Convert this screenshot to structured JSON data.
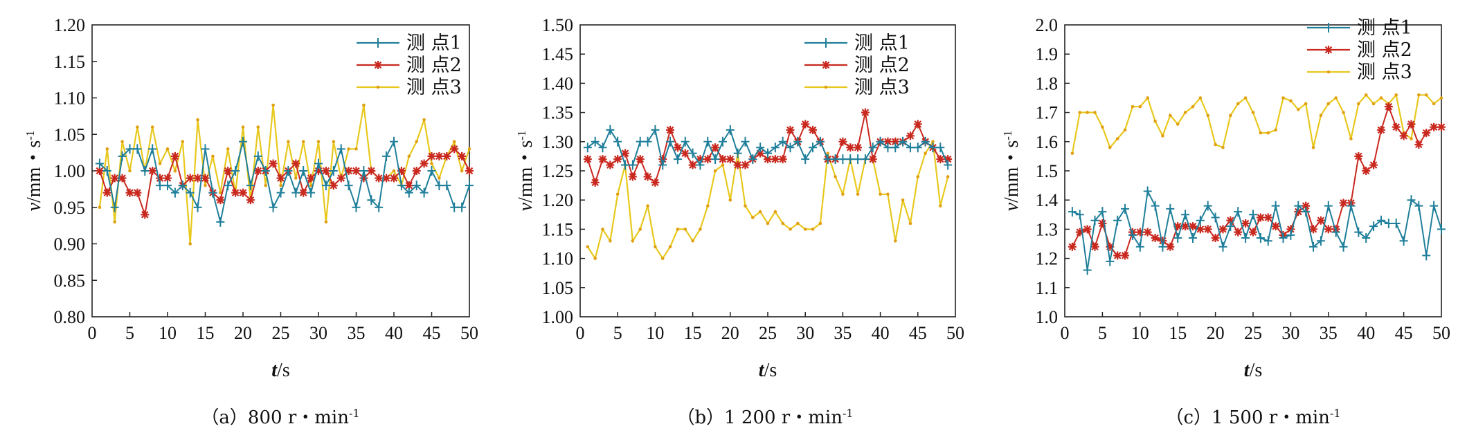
{
  "chart_data": [
    {
      "type": "line",
      "caption": "（a）800 r・min",
      "caption_sup": "-1",
      "xlabel_italic": "t",
      "xlabel_unit": "/s",
      "ylabel_italic": "v",
      "ylabel_unit": "/mm・s",
      "ylabel_sup": "-1",
      "xlim": [
        0,
        50
      ],
      "ylim": [
        0.8,
        1.2
      ],
      "xticks": [
        "0",
        "5",
        "10",
        "15",
        "20",
        "25",
        "30",
        "35",
        "40",
        "45",
        "50"
      ],
      "yticks": [
        "0.80",
        "0.85",
        "0.90",
        "0.95",
        "1.00",
        "1.05",
        "1.10",
        "1.15",
        "1.20"
      ],
      "legend_position": "top-right",
      "series": [
        {
          "name": "测 点1",
          "color": "#1f7f9a",
          "marker": "plus",
          "x": [
            1,
            2,
            3,
            4,
            5,
            6,
            7,
            8,
            9,
            10,
            11,
            12,
            13,
            14,
            15,
            16,
            17,
            18,
            19,
            20,
            21,
            22,
            23,
            24,
            25,
            26,
            27,
            28,
            29,
            30,
            31,
            32,
            33,
            34,
            35,
            36,
            37,
            38,
            39,
            40,
            41,
            42,
            43,
            44,
            45,
            46,
            47,
            48,
            49,
            50
          ],
          "y": [
            1.01,
            1.0,
            0.95,
            1.02,
            1.03,
            1.03,
            1.0,
            1.03,
            0.98,
            0.98,
            0.97,
            0.98,
            0.97,
            0.95,
            1.03,
            0.97,
            0.93,
            0.98,
            1.0,
            1.04,
            0.98,
            1.02,
            1.0,
            0.95,
            0.97,
            1.0,
            0.97,
            1.0,
            0.97,
            1.01,
            0.98,
            1.0,
            1.03,
            0.98,
            0.95,
            1.0,
            0.96,
            0.95,
            1.02,
            1.04,
            0.98,
            0.97,
            0.98,
            0.97,
            1.0,
            0.98,
            0.98,
            0.95,
            0.95,
            0.98
          ]
        },
        {
          "name": "测 点2",
          "color": "#c8281e",
          "marker": "star",
          "x": [
            1,
            2,
            3,
            4,
            5,
            6,
            7,
            8,
            9,
            10,
            11,
            12,
            13,
            14,
            15,
            16,
            17,
            18,
            19,
            20,
            21,
            22,
            23,
            24,
            25,
            26,
            27,
            28,
            29,
            30,
            31,
            32,
            33,
            34,
            35,
            36,
            37,
            38,
            39,
            40,
            41,
            42,
            43,
            44,
            45,
            46,
            47,
            48,
            49,
            50
          ],
          "y": [
            1.0,
            0.97,
            0.99,
            0.99,
            0.97,
            0.97,
            0.94,
            1.0,
            0.99,
            0.99,
            1.02,
            0.98,
            0.99,
            0.99,
            0.99,
            0.97,
            0.96,
            1.0,
            0.97,
            0.97,
            0.96,
            1.0,
            1.0,
            1.01,
            0.99,
            1.0,
            1.01,
            0.97,
            0.99,
            1.0,
            1.0,
            0.98,
            0.99,
            1.0,
            1.0,
            0.99,
            1.0,
            0.99,
            0.99,
            0.99,
            1.0,
            0.98,
            1.0,
            1.01,
            1.02,
            1.02,
            1.02,
            1.03,
            1.02,
            1.0
          ]
        },
        {
          "name": "测 点3",
          "color": "#e8c81c",
          "marker": "dot",
          "x": [
            1,
            2,
            3,
            4,
            5,
            6,
            7,
            8,
            9,
            10,
            11,
            12,
            13,
            14,
            15,
            16,
            17,
            18,
            19,
            20,
            21,
            22,
            23,
            24,
            25,
            26,
            27,
            28,
            29,
            30,
            31,
            32,
            33,
            34,
            35,
            36,
            37,
            38,
            39,
            40,
            41,
            42,
            43,
            44,
            45,
            46,
            47,
            48,
            49,
            50
          ],
          "y": [
            0.95,
            1.03,
            0.93,
            1.04,
            1.0,
            1.06,
            1.0,
            1.06,
            1.01,
            1.03,
            1.0,
            1.04,
            0.9,
            1.07,
            0.98,
            1.02,
            0.97,
            1.03,
            0.97,
            1.06,
            0.96,
            1.06,
            0.98,
            1.09,
            0.98,
            1.04,
            0.99,
            1.04,
            0.98,
            1.04,
            0.93,
            1.04,
            0.99,
            1.03,
            1.03,
            1.09,
            1.0,
            0.99,
            0.99,
            1.0,
            0.98,
            1.02,
            1.04,
            1.07,
            1.01,
            0.99,
            1.02,
            1.04,
            1.0,
            1.03
          ]
        }
      ]
    },
    {
      "type": "line",
      "caption": "（b）1 200 r・min",
      "caption_sup": "-1",
      "xlabel_italic": "t",
      "xlabel_unit": "/s",
      "ylabel_italic": "v",
      "ylabel_unit": "/mm・s",
      "ylabel_sup": "-1",
      "xlim": [
        0,
        50
      ],
      "ylim": [
        1.0,
        1.5
      ],
      "xticks": [
        "0",
        "5",
        "10",
        "15",
        "20",
        "25",
        "30",
        "35",
        "40",
        "45",
        "50"
      ],
      "yticks": [
        "1.00",
        "1.05",
        "1.10",
        "1.15",
        "1.20",
        "1.25",
        "1.30",
        "1.35",
        "1.40",
        "1.45",
        "1.50"
      ],
      "legend_position": "top-right",
      "series": [
        {
          "name": "测 点1",
          "color": "#1f7f9a",
          "marker": "plus",
          "x": [
            1,
            2,
            3,
            4,
            5,
            6,
            7,
            8,
            9,
            10,
            11,
            12,
            13,
            14,
            15,
            16,
            17,
            18,
            19,
            20,
            21,
            22,
            23,
            24,
            25,
            26,
            27,
            28,
            29,
            30,
            31,
            32,
            33,
            34,
            35,
            36,
            37,
            38,
            39,
            40,
            41,
            42,
            43,
            44,
            45,
            46,
            47,
            48,
            49
          ],
          "y": [
            1.29,
            1.3,
            1.29,
            1.32,
            1.3,
            1.26,
            1.26,
            1.3,
            1.3,
            1.32,
            1.26,
            1.3,
            1.27,
            1.3,
            1.28,
            1.26,
            1.3,
            1.27,
            1.3,
            1.32,
            1.28,
            1.3,
            1.27,
            1.29,
            1.28,
            1.29,
            1.3,
            1.29,
            1.3,
            1.27,
            1.29,
            1.3,
            1.27,
            1.27,
            1.27,
            1.27,
            1.27,
            1.27,
            1.29,
            1.3,
            1.29,
            1.29,
            1.3,
            1.29,
            1.29,
            1.3,
            1.29,
            1.29,
            1.26
          ]
        },
        {
          "name": "测 点2",
          "color": "#c8281e",
          "marker": "star",
          "x": [
            1,
            2,
            3,
            4,
            5,
            6,
            7,
            8,
            9,
            10,
            11,
            12,
            13,
            14,
            15,
            16,
            17,
            18,
            19,
            20,
            21,
            22,
            23,
            24,
            25,
            26,
            27,
            28,
            29,
            30,
            31,
            32,
            33,
            34,
            35,
            36,
            37,
            38,
            39,
            40,
            41,
            42,
            43,
            44,
            45,
            46,
            47,
            48,
            49
          ],
          "y": [
            1.27,
            1.23,
            1.27,
            1.26,
            1.27,
            1.28,
            1.24,
            1.27,
            1.24,
            1.23,
            1.27,
            1.32,
            1.29,
            1.28,
            1.26,
            1.27,
            1.27,
            1.29,
            1.27,
            1.27,
            1.26,
            1.26,
            1.27,
            1.28,
            1.27,
            1.27,
            1.27,
            1.32,
            1.3,
            1.33,
            1.32,
            1.3,
            1.27,
            1.27,
            1.3,
            1.29,
            1.29,
            1.35,
            1.27,
            1.3,
            1.3,
            1.3,
            1.3,
            1.31,
            1.33,
            1.3,
            1.29,
            1.27,
            1.27
          ]
        },
        {
          "name": "测 点3",
          "color": "#e8c81c",
          "marker": "dot",
          "x": [
            1,
            2,
            3,
            4,
            5,
            6,
            7,
            8,
            9,
            10,
            11,
            12,
            13,
            14,
            15,
            16,
            17,
            18,
            19,
            20,
            21,
            22,
            23,
            24,
            25,
            26,
            27,
            28,
            29,
            30,
            31,
            32,
            33,
            34,
            35,
            36,
            37,
            38,
            39,
            40,
            41,
            42,
            43,
            44,
            45,
            46,
            47,
            48,
            49
          ],
          "y": [
            1.12,
            1.1,
            1.15,
            1.13,
            1.21,
            1.26,
            1.13,
            1.15,
            1.19,
            1.12,
            1.1,
            1.12,
            1.15,
            1.15,
            1.13,
            1.15,
            1.19,
            1.25,
            1.26,
            1.2,
            1.28,
            1.19,
            1.17,
            1.18,
            1.16,
            1.18,
            1.16,
            1.15,
            1.16,
            1.15,
            1.15,
            1.16,
            1.28,
            1.24,
            1.21,
            1.27,
            1.21,
            1.27,
            1.27,
            1.21,
            1.21,
            1.13,
            1.2,
            1.16,
            1.24,
            1.28,
            1.3,
            1.19,
            1.24
          ]
        }
      ]
    },
    {
      "type": "line",
      "caption": "（c）1 500 r・min",
      "caption_sup": "-1",
      "xlabel_italic": "t",
      "xlabel_unit": "/s",
      "ylabel_italic": "v",
      "ylabel_unit": "/mm・s",
      "ylabel_sup": "-1",
      "xlim": [
        0,
        50
      ],
      "ylim": [
        1.0,
        2.0
      ],
      "xticks": [
        "0",
        "5",
        "10",
        "15",
        "20",
        "25",
        "30",
        "35",
        "40",
        "45",
        "50"
      ],
      "yticks": [
        "1.0",
        "1.1",
        "1.2",
        "1.3",
        "1.4",
        "1.5",
        "1.6",
        "1.7",
        "1.8",
        "1.9",
        "2.0"
      ],
      "legend_position": "top-right",
      "series": [
        {
          "name": "测 点1",
          "color": "#1f7f9a",
          "marker": "plus",
          "x": [
            1,
            2,
            3,
            4,
            5,
            6,
            7,
            8,
            9,
            10,
            11,
            12,
            13,
            14,
            15,
            16,
            17,
            18,
            19,
            20,
            21,
            22,
            23,
            24,
            25,
            26,
            27,
            28,
            29,
            30,
            31,
            32,
            33,
            34,
            35,
            36,
            37,
            38,
            39,
            40,
            41,
            42,
            43,
            44,
            45,
            46,
            47,
            48,
            49,
            50
          ],
          "y": [
            1.36,
            1.35,
            1.16,
            1.33,
            1.36,
            1.19,
            1.33,
            1.37,
            1.28,
            1.24,
            1.43,
            1.38,
            1.24,
            1.37,
            1.27,
            1.35,
            1.27,
            1.33,
            1.38,
            1.34,
            1.24,
            1.31,
            1.36,
            1.27,
            1.35,
            1.27,
            1.26,
            1.38,
            1.27,
            1.28,
            1.38,
            1.36,
            1.24,
            1.26,
            1.38,
            1.29,
            1.24,
            1.38,
            1.29,
            1.27,
            1.31,
            1.33,
            1.32,
            1.32,
            1.26,
            1.4,
            1.38,
            1.21,
            1.38,
            1.3
          ]
        },
        {
          "name": "测 点2",
          "color": "#c8281e",
          "marker": "star",
          "x": [
            1,
            2,
            3,
            4,
            5,
            6,
            7,
            8,
            9,
            10,
            11,
            12,
            13,
            14,
            15,
            16,
            17,
            18,
            19,
            20,
            21,
            22,
            23,
            24,
            25,
            26,
            27,
            28,
            29,
            30,
            31,
            32,
            33,
            34,
            35,
            36,
            37,
            38,
            39,
            40,
            41,
            42,
            43,
            44,
            45,
            46,
            47,
            48,
            49,
            50
          ],
          "y": [
            1.24,
            1.29,
            1.3,
            1.24,
            1.32,
            1.24,
            1.21,
            1.21,
            1.29,
            1.29,
            1.29,
            1.27,
            1.26,
            1.24,
            1.31,
            1.31,
            1.31,
            1.3,
            1.3,
            1.27,
            1.3,
            1.33,
            1.29,
            1.32,
            1.29,
            1.34,
            1.34,
            1.31,
            1.28,
            1.3,
            1.36,
            1.38,
            1.3,
            1.33,
            1.3,
            1.3,
            1.39,
            1.39,
            1.55,
            1.5,
            1.52,
            1.64,
            1.72,
            1.65,
            1.62,
            1.66,
            1.59,
            1.63,
            1.65,
            1.65
          ]
        },
        {
          "name": "测 点3",
          "color": "#e8c81c",
          "marker": "dot",
          "x": [
            1,
            2,
            3,
            4,
            5,
            6,
            7,
            8,
            9,
            10,
            11,
            12,
            13,
            14,
            15,
            16,
            17,
            18,
            19,
            20,
            21,
            22,
            23,
            24,
            25,
            26,
            27,
            28,
            29,
            30,
            31,
            32,
            33,
            34,
            35,
            36,
            37,
            38,
            39,
            40,
            41,
            42,
            43,
            44,
            45,
            46,
            47,
            48,
            49,
            50
          ],
          "y": [
            1.56,
            1.7,
            1.7,
            1.7,
            1.65,
            1.58,
            1.61,
            1.64,
            1.72,
            1.72,
            1.75,
            1.67,
            1.62,
            1.69,
            1.66,
            1.7,
            1.72,
            1.75,
            1.69,
            1.59,
            1.58,
            1.69,
            1.73,
            1.75,
            1.7,
            1.63,
            1.63,
            1.64,
            1.75,
            1.74,
            1.71,
            1.73,
            1.58,
            1.69,
            1.73,
            1.75,
            1.7,
            1.61,
            1.73,
            1.76,
            1.73,
            1.75,
            1.73,
            1.76,
            1.63,
            1.61,
            1.76,
            1.76,
            1.73,
            1.75
          ]
        }
      ]
    }
  ]
}
